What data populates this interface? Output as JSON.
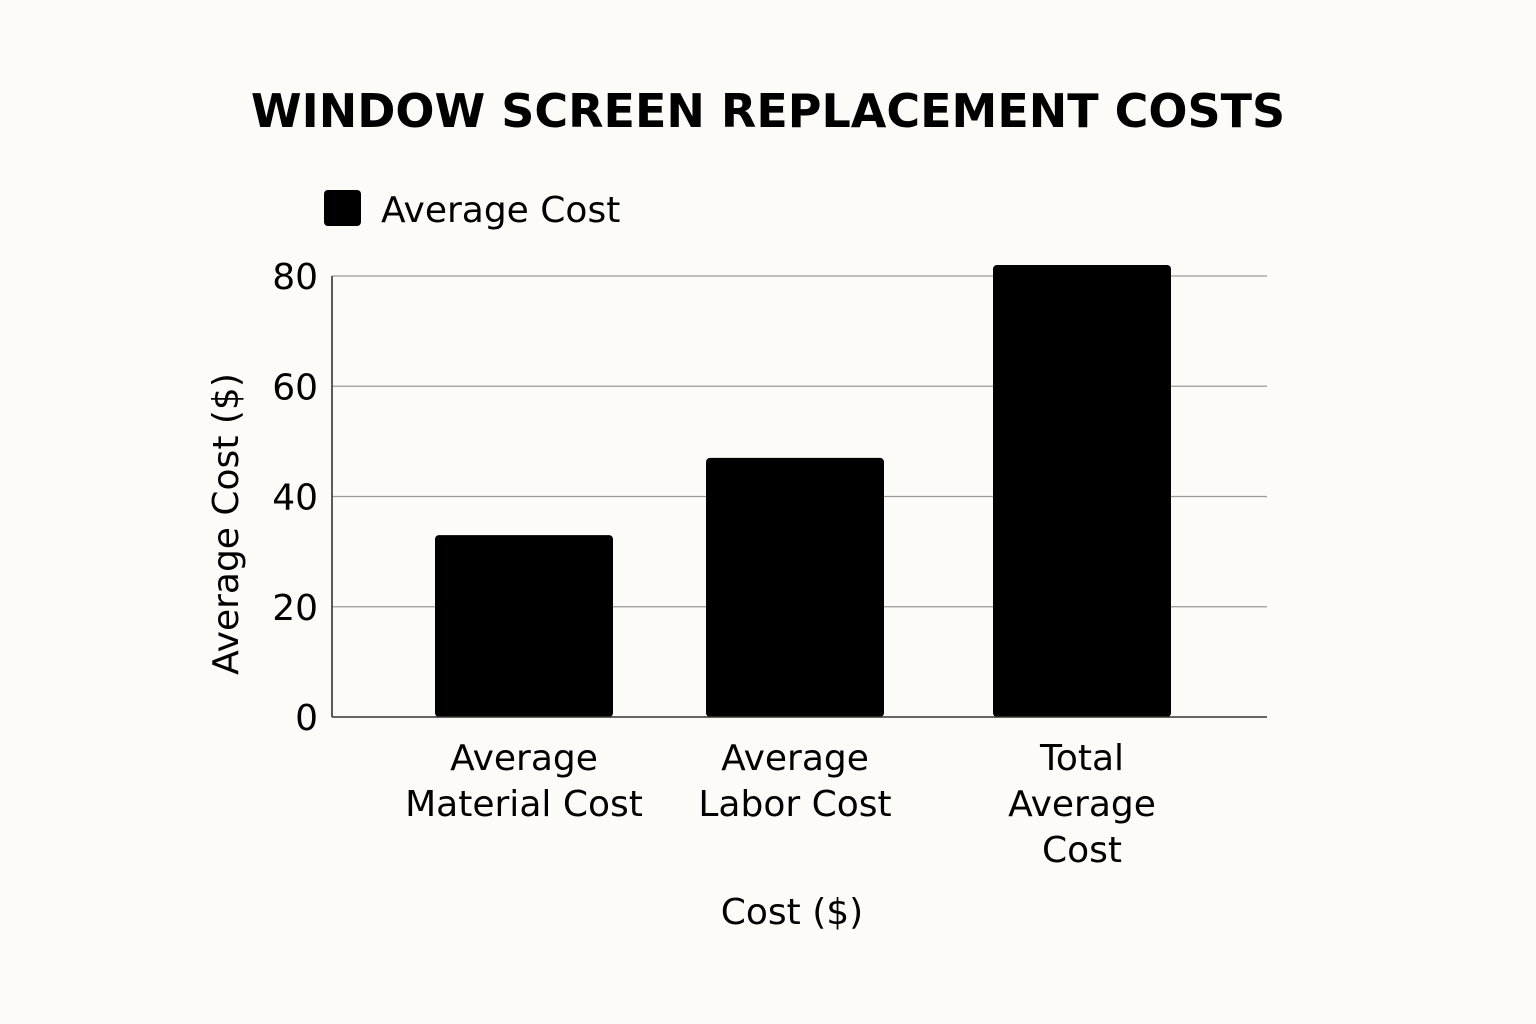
{
  "chart_data": {
    "type": "bar",
    "title": "WINDOW SCREEN REPLACEMENT COSTS",
    "categories": [
      [
        "Average",
        "Material Cost"
      ],
      [
        "Average",
        "Labor Cost"
      ],
      [
        "Total",
        "Average",
        "Cost"
      ]
    ],
    "series": [
      {
        "name": "Average Cost",
        "values": [
          33,
          47,
          82
        ],
        "color": "#000000"
      }
    ],
    "xlabel": "Cost ($)",
    "ylabel": "Average Cost ($)",
    "ylim": [
      0,
      80
    ],
    "yticks": [
      0,
      20,
      40,
      60,
      80
    ],
    "grid": true,
    "legend": {
      "position": "top-left",
      "entries": [
        "Average Cost"
      ]
    }
  }
}
